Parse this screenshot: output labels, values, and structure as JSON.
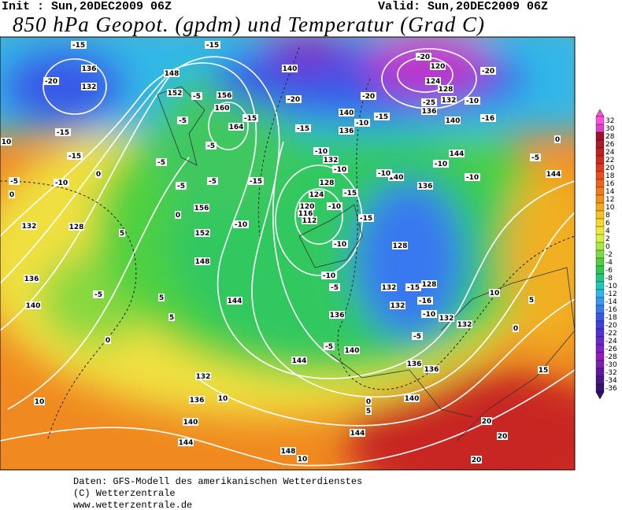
{
  "header": {
    "init": "Init : Sun,20DEC2009 06Z",
    "valid": "Valid: Sun,20DEC2009 06Z",
    "title": "850 hPa Geopot. (gpdm) und Temperatur (Grad C)"
  },
  "map": {
    "labels": [
      "-15",
      "-15",
      "-20",
      "136",
      "148",
      "132",
      "152",
      "-5",
      "156",
      "-5",
      "160",
      "-15",
      "164",
      "-5",
      "-5",
      "-5",
      "-5",
      "-15",
      "-15",
      "-15",
      "10",
      "0",
      "-10",
      "-5",
      "0",
      "156",
      "0",
      "152",
      "-10",
      "148",
      "132",
      "128",
      "5",
      "136",
      "-5",
      "5",
      "140",
      "144",
      "5",
      "0",
      "10",
      "132",
      "136",
      "10",
      "140",
      "144",
      "140",
      "-20",
      "-15",
      "-10",
      "132",
      "-10",
      "128",
      "124",
      "120",
      "116",
      "112",
      "-10",
      "-15",
      "-10",
      "-10",
      "-5",
      "136",
      "-5",
      "140",
      "144",
      "0",
      "5",
      "148",
      "10",
      "144",
      "-20",
      "120",
      "124",
      "128",
      "132",
      "-20",
      "-25",
      "136",
      "-10",
      "140",
      "-16",
      "-20",
      "140",
      "-10",
      "-15",
      "136",
      "144",
      "-10",
      "-10",
      "-5",
      "144",
      "0",
      "140",
      "-10",
      "136",
      "-15",
      "128",
      "132",
      "-15",
      "128",
      "-16",
      "132",
      "-10",
      "132",
      "132",
      "-5",
      "136",
      "136",
      "140",
      "10",
      "5",
      "0",
      "15",
      "20",
      "20",
      "20"
    ]
  },
  "colorbar": {
    "ticks": [
      32,
      30,
      28,
      26,
      24,
      22,
      20,
      18,
      16,
      14,
      12,
      10,
      8,
      6,
      4,
      2,
      0,
      -2,
      -4,
      -6,
      -8,
      -10,
      -12,
      -14,
      -16,
      -18,
      -20,
      -22,
      -24,
      -26,
      -28,
      -30,
      -32,
      -34,
      -36
    ],
    "colors": [
      "#ff50e0",
      "#e040c8",
      "#a0102a",
      "#b01828",
      "#c02020",
      "#d02a20",
      "#e03a1e",
      "#e8501c",
      "#f0641a",
      "#f27a18",
      "#f49018",
      "#f6a818",
      "#f8c020",
      "#f8d828",
      "#f0e838",
      "#d8f040",
      "#a8e840",
      "#78dc40",
      "#50d040",
      "#30c850",
      "#20c880",
      "#20c8b8",
      "#30b8e8",
      "#3898f0",
      "#3878f0",
      "#3858e8",
      "#4040e0",
      "#5030d8",
      "#6828d0",
      "#8020c8",
      "#9818c0",
      "#7820b0",
      "#6018a0",
      "#481888",
      "#381070"
    ]
  },
  "footer": {
    "lines": [
      "Daten: GFS-Modell des amerikanischen Wetterdienstes",
      "(C) Wetterzentrale",
      "www.wetterzentrale.de"
    ]
  }
}
